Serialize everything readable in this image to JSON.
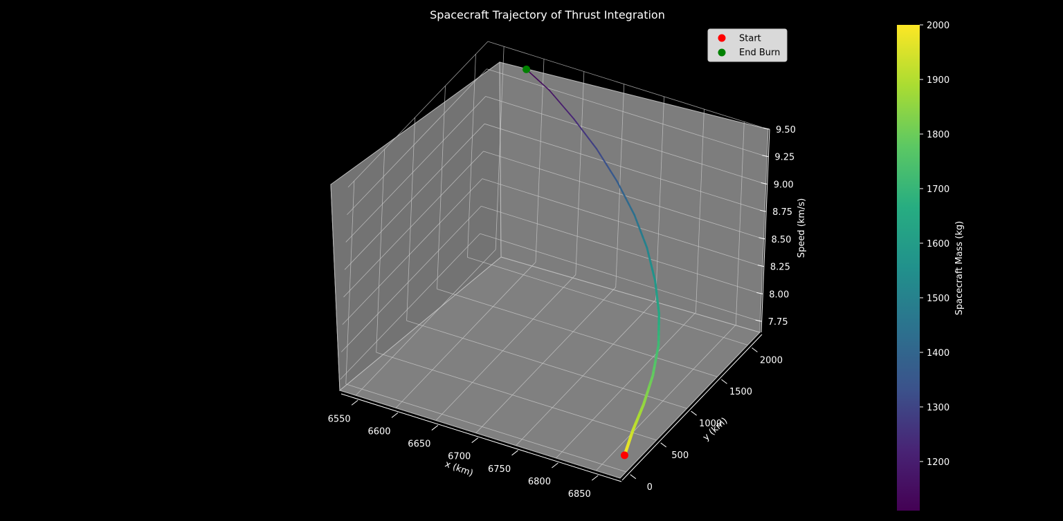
{
  "chart_data": {
    "type": "line3d",
    "title": "Spacecraft Trajectory of Thrust Integration",
    "xlabel": "x (km)",
    "ylabel": "y (km)",
    "zlabel": "Speed (km/s)",
    "xlim": [
      6530,
      6880
    ],
    "ylim": [
      -100,
      2200
    ],
    "zlim": [
      7.65,
      9.5
    ],
    "x_ticks": [
      6550,
      6600,
      6650,
      6700,
      6750,
      6800,
      6850
    ],
    "y_ticks": [
      0,
      500,
      1000,
      1500,
      2000
    ],
    "z_ticks": [
      7.75,
      8.0,
      8.25,
      8.5,
      8.75,
      9.0,
      9.25,
      9.5
    ],
    "z_tick_labels": [
      "7.75",
      "8.00",
      "8.25",
      "8.50",
      "8.75",
      "9.00",
      "9.25",
      "9.50"
    ],
    "grid": true,
    "legend_position": "top-right",
    "legend": [
      {
        "label": "Start",
        "color": "#ff0000"
      },
      {
        "label": "End Burn",
        "color": "#008000"
      }
    ],
    "colorbar": {
      "label": "Spacecraft Mass (kg)",
      "min": 1110,
      "max": 2000,
      "ticks": [
        1200,
        1300,
        1400,
        1500,
        1600,
        1700,
        1800,
        1900,
        2000
      ],
      "colormap": "viridis"
    },
    "trajectory": [
      {
        "x": 6870,
        "y": 100,
        "z": 7.72,
        "mass": 2000
      },
      {
        "x": 6861,
        "y": 350,
        "z": 7.78,
        "mass": 1930
      },
      {
        "x": 6855,
        "y": 600,
        "z": 7.86,
        "mass": 1860
      },
      {
        "x": 6847,
        "y": 850,
        "z": 7.96,
        "mass": 1790
      },
      {
        "x": 6836,
        "y": 1080,
        "z": 8.08,
        "mass": 1720
      },
      {
        "x": 6820,
        "y": 1290,
        "z": 8.21,
        "mass": 1650
      },
      {
        "x": 6800,
        "y": 1480,
        "z": 8.35,
        "mass": 1580
      },
      {
        "x": 6776,
        "y": 1650,
        "z": 8.5,
        "mass": 1510
      },
      {
        "x": 6748,
        "y": 1800,
        "z": 8.65,
        "mass": 1440
      },
      {
        "x": 6716,
        "y": 1925,
        "z": 8.81,
        "mass": 1370
      },
      {
        "x": 6682,
        "y": 2025,
        "z": 8.97,
        "mass": 1300
      },
      {
        "x": 6647,
        "y": 2100,
        "z": 9.12,
        "mass": 1230
      },
      {
        "x": 6612,
        "y": 2150,
        "z": 9.27,
        "mass": 1160
      },
      {
        "x": 6581,
        "y": 2170,
        "z": 9.38,
        "mass": 1110
      }
    ],
    "start_point": {
      "x": 6870,
      "y": 100,
      "z": 7.72
    },
    "end_point": {
      "x": 6581,
      "y": 2170,
      "z": 9.38
    }
  }
}
